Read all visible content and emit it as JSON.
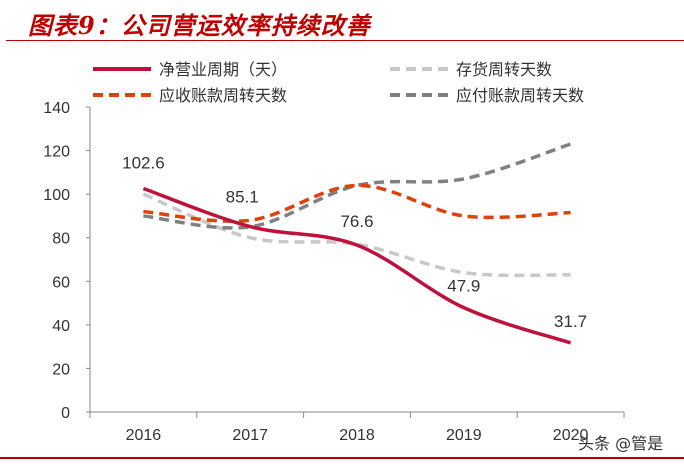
{
  "title": "图表9：公司营运效率持续改善",
  "watermark": "头条 @管是",
  "chart_data": {
    "type": "line",
    "categories": [
      "2016",
      "2017",
      "2018",
      "2019",
      "2020"
    ],
    "ylim": [
      0,
      140
    ],
    "yticks": [
      0,
      20,
      40,
      60,
      80,
      100,
      120,
      140
    ],
    "grid": false,
    "legend_placement": "top",
    "series": [
      {
        "name": "净营业周期（天）",
        "values": [
          102.6,
          85.1,
          76.6,
          47.9,
          31.7
        ],
        "color": "#c0103c",
        "dash": "solid",
        "labels": [
          "102.6",
          "85.1",
          "76.6",
          "47.9",
          "31.7"
        ]
      },
      {
        "name": "存货周转天数",
        "values": [
          100,
          80,
          77,
          64,
          63
        ],
        "color": "#c8c8c8",
        "dash": "dashed"
      },
      {
        "name": "应收账款周转天数",
        "values": [
          92,
          88,
          104,
          90,
          91.5
        ],
        "color": "#e0400a",
        "dash": "dashed"
      },
      {
        "name": "应付账款周转天数",
        "values": [
          90,
          85,
          104,
          107,
          123
        ],
        "color": "#808080",
        "dash": "dashed"
      }
    ]
  }
}
